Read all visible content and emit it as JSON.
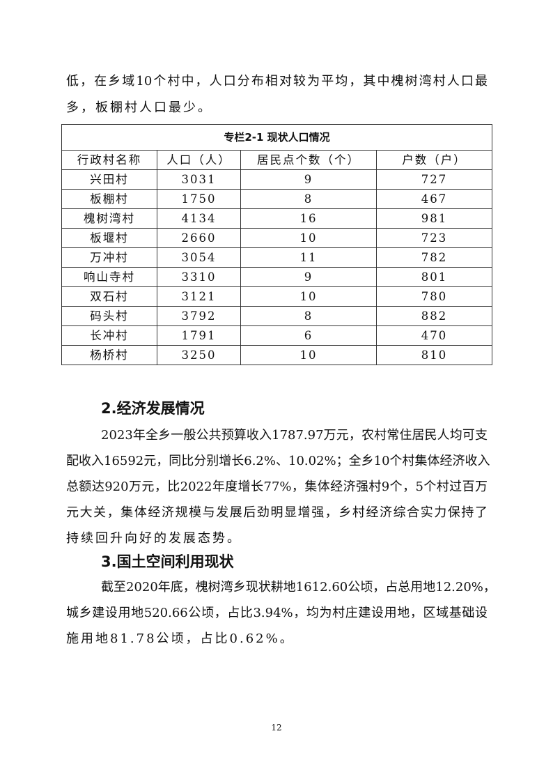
{
  "intro_lines": [
    "低，在乡域10个村中，人口分布相对较为平均，其中槐树湾村人口最",
    "多，板棚村人口最少。"
  ],
  "table": {
    "title": "专栏2-1 现状人口情况",
    "headers": [
      "行政村名称",
      "人口（人）",
      "居民点个数（个）",
      "户数（户）"
    ],
    "rows": [
      [
        "兴田村",
        "3031",
        "9",
        "727"
      ],
      [
        "板棚村",
        "1750",
        "8",
        "467"
      ],
      [
        "槐树湾村",
        "4134",
        "16",
        "981"
      ],
      [
        "板堰村",
        "2660",
        "10",
        "723"
      ],
      [
        "万冲村",
        "3054",
        "11",
        "782"
      ],
      [
        "响山寺村",
        "3310",
        "9",
        "801"
      ],
      [
        "双石村",
        "3121",
        "10",
        "780"
      ],
      [
        "码头村",
        "3792",
        "8",
        "882"
      ],
      [
        "长冲村",
        "1791",
        "6",
        "470"
      ],
      [
        "杨桥村",
        "3250",
        "10",
        "810"
      ]
    ]
  },
  "section2": {
    "heading": "2.经济发展情况",
    "lines": [
      "2023年全乡一般公共预算收入1787.97万元，农村常住居民人均可支",
      "配收入16592元，同比分别增长6.2%、10.02%；全乡10个村集体经济收入",
      "总额达920万元，比2022年度增长77%，集体经济强村9个，5个村过百万",
      "元大关，集体经济规模与发展后劲明显增强，乡村经济综合实力保持了",
      "持续回升向好的发展态势。"
    ]
  },
  "section3": {
    "heading": "3.国土空间利用现状",
    "lines": [
      "截至2020年底，槐树湾乡现状耕地1612.60公顷，占总用地12.20%，",
      "城乡建设用地520.66公顷，占比3.94%，均为村庄建设用地，区域基础设",
      "施用地81.78公顷，占比0.62%。"
    ]
  },
  "page_number": "12"
}
